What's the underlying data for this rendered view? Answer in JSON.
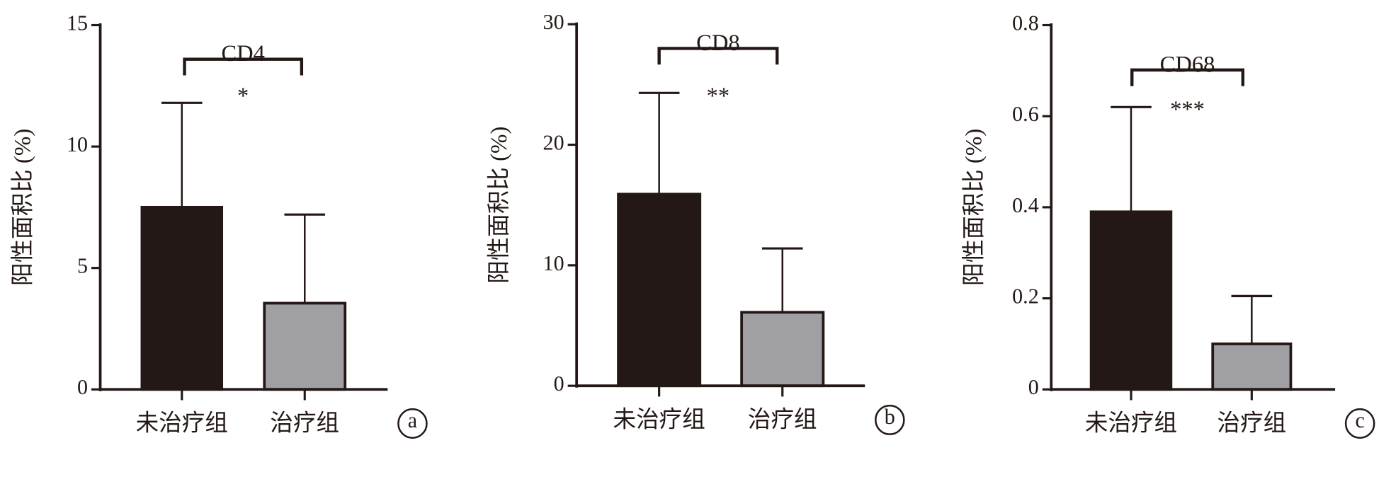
{
  "chart_data": [
    {
      "type": "bar",
      "title": "CD4",
      "annotation": "*",
      "panel": "a",
      "y_label": "阳性面积比 (%)",
      "categories": [
        "未治疗组",
        "治疗组"
      ],
      "values": [
        7.5,
        3.55
      ],
      "errors": [
        4.3,
        3.65
      ],
      "colors": [
        "#231815",
        "#a09fa4"
      ],
      "ylim": [
        0,
        15
      ],
      "yticks": [
        0,
        5,
        10,
        15
      ]
    },
    {
      "type": "bar",
      "title": "CD8",
      "annotation": "**",
      "panel": "b",
      "y_label": "阳性面积比 (%)",
      "categories": [
        "未治疗组",
        "治疗组"
      ],
      "values": [
        15.9,
        6.1
      ],
      "errors": [
        8.4,
        5.3
      ],
      "colors": [
        "#231815",
        "#a09fa4"
      ],
      "ylim": [
        0,
        30
      ],
      "yticks": [
        0,
        10,
        20,
        30
      ]
    },
    {
      "type": "bar",
      "title": "CD68",
      "annotation": "***",
      "panel": "c",
      "y_label": "阳性面积比 (%)",
      "categories": [
        "未治疗组",
        "治疗组"
      ],
      "values": [
        0.39,
        0.1
      ],
      "errors": [
        0.23,
        0.105
      ],
      "colors": [
        "#231815",
        "#a09fa4"
      ],
      "ylim": [
        0,
        0.8
      ],
      "yticks": [
        0,
        0.2,
        0.4,
        0.6,
        0.8
      ]
    }
  ]
}
